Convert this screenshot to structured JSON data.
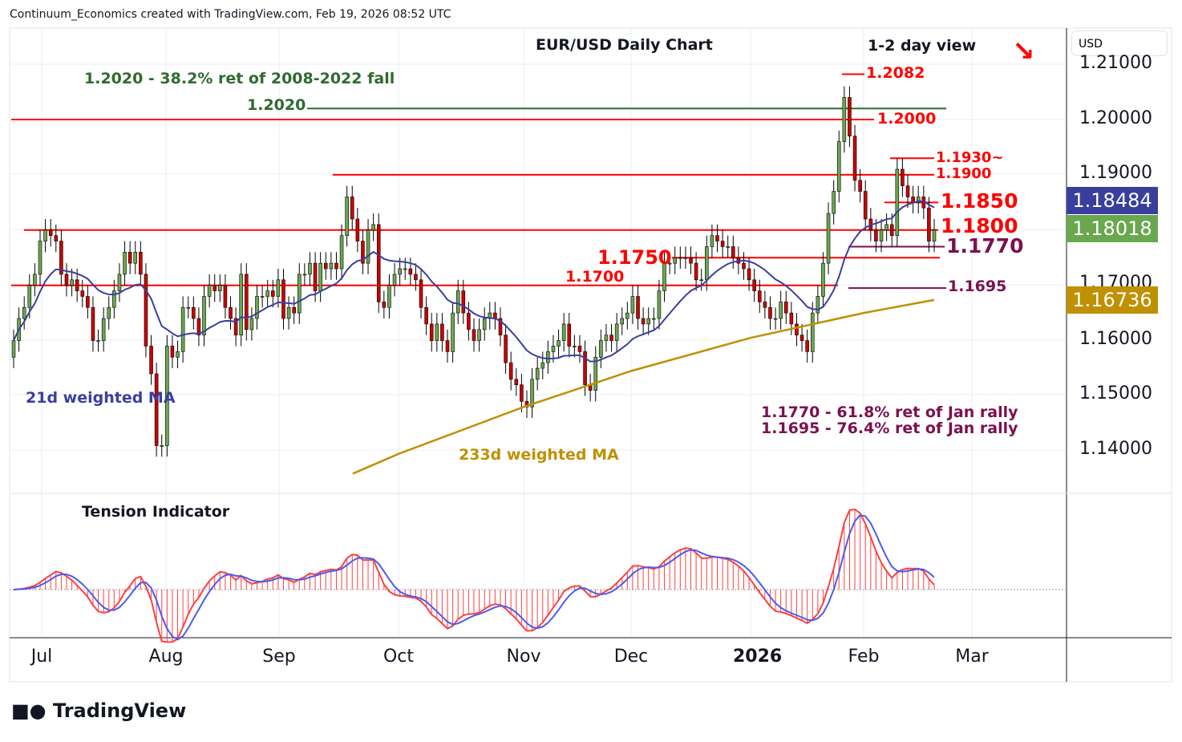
{
  "header": {
    "credit": "Continuum_Economics created with TradingView.com, Feb 19, 2026 08:52 UTC"
  },
  "chart_data": {
    "type": "candlestick",
    "title": "EUR/USD Daily Chart",
    "subtitle": "1-2 day view",
    "direction_arrow": "down-right",
    "currency": "USD",
    "ylim": [
      1.133,
      1.215
    ],
    "y_ticks": [
      "1.21000",
      "1.20000",
      "1.19000",
      "1.17000",
      "1.16000",
      "1.15000",
      "1.14000"
    ],
    "x_ticks": [
      "Jul",
      "Aug",
      "Sep",
      "Oct",
      "Nov",
      "Dec",
      "2026",
      "Feb",
      "Mar"
    ],
    "closes": [
      1.16,
      1.164,
      1.166,
      1.17,
      1.172,
      1.178,
      1.18,
      1.179,
      1.178,
      1.172,
      1.17,
      1.171,
      1.169,
      1.168,
      1.166,
      1.16,
      1.16,
      1.164,
      1.166,
      1.169,
      1.172,
      1.176,
      1.174,
      1.176,
      1.172,
      1.159,
      1.154,
      1.141,
      1.141,
      1.159,
      1.157,
      1.158,
      1.166,
      1.166,
      1.164,
      1.161,
      1.168,
      1.17,
      1.169,
      1.17,
      1.166,
      1.164,
      1.161,
      1.172,
      1.162,
      1.164,
      1.168,
      1.168,
      1.169,
      1.168,
      1.171,
      1.164,
      1.166,
      1.165,
      1.172,
      1.172,
      1.174,
      1.169,
      1.174,
      1.173,
      1.174,
      1.173,
      1.179,
      1.186,
      1.182,
      1.178,
      1.174,
      1.18,
      1.181,
      1.167,
      1.166,
      1.17,
      1.172,
      1.173,
      1.173,
      1.172,
      1.171,
      1.166,
      1.163,
      1.16,
      1.163,
      1.16,
      1.158,
      1.165,
      1.169,
      1.165,
      1.162,
      1.16,
      1.162,
      1.164,
      1.165,
      1.164,
      1.161,
      1.156,
      1.153,
      1.152,
      1.149,
      1.148,
      1.153,
      1.155,
      1.156,
      1.158,
      1.159,
      1.16,
      1.163,
      1.159,
      1.159,
      1.158,
      1.152,
      1.151,
      1.157,
      1.16,
      1.161,
      1.16,
      1.163,
      1.164,
      1.165,
      1.168,
      1.164,
      1.163,
      1.164,
      1.164,
      1.169,
      1.174,
      1.174,
      1.175,
      1.175,
      1.175,
      1.174,
      1.171,
      1.171,
      1.177,
      1.179,
      1.178,
      1.177,
      1.177,
      1.175,
      1.174,
      1.173,
      1.171,
      1.169,
      1.167,
      1.166,
      1.164,
      1.164,
      1.167,
      1.165,
      1.163,
      1.161,
      1.16,
      1.158,
      1.165,
      1.168,
      1.174,
      1.183,
      1.187,
      1.196,
      1.204,
      1.197,
      1.189,
      1.187,
      1.182,
      1.18,
      1.178,
      1.18,
      1.181,
      1.179,
      1.191,
      1.188,
      1.186,
      1.185,
      1.186,
      1.184,
      1.178,
      1.18
    ],
    "ma233_anchors": [
      {
        "at": "Oct",
        "v": 1.1395
      },
      {
        "at": "Nov",
        "v": 1.148
      },
      {
        "at": "Dec",
        "v": 1.1545
      },
      {
        "at": "2026",
        "v": 1.1605
      },
      {
        "at": "Feb",
        "v": 1.165
      }
    ],
    "price_tags": [
      {
        "value": "1.18484",
        "color": "#3a3f9e",
        "series": "21d weighted MA"
      },
      {
        "value": "1.18018",
        "color": "#6aa84f",
        "series": "last"
      },
      {
        "value": "1.16736",
        "color": "#bf9000",
        "series": "233d weighted MA"
      }
    ],
    "levels": [
      {
        "label": "1.2082",
        "value": 1.2082,
        "color": "#ff0000"
      },
      {
        "label": "1.2020",
        "value": 1.202,
        "color": "#2e6b2e"
      },
      {
        "label": "1.2000",
        "value": 1.2,
        "color": "#ff0000"
      },
      {
        "label": "1.1930~",
        "value": 1.193,
        "color": "#ff0000"
      },
      {
        "label": "1.1900",
        "value": 1.19,
        "color": "#ff0000"
      },
      {
        "label": "1.1850",
        "value": 1.185,
        "color": "#ff0000"
      },
      {
        "label": "1.1800",
        "value": 1.18,
        "color": "#ff0000"
      },
      {
        "label": "1.1770",
        "value": 1.177,
        "color": "#7b1050"
      },
      {
        "label": "1.1750",
        "value": 1.175,
        "color": "#ff0000"
      },
      {
        "label": "1.1700",
        "value": 1.17,
        "color": "#ff0000"
      },
      {
        "label": "1.1695",
        "value": 1.1695,
        "color": "#7b1050"
      }
    ],
    "annotations": {
      "fib_2020": "1.2020 - 38.2% ret of 2008-2022 fall",
      "fib_1770": "1.1770 - 61.8% ret of Jan rally",
      "fib_1695": "1.1695 - 76.4% ret of Jan rally",
      "ma21": "21d weighted MA",
      "ma233": "233d weighted MA",
      "indicator": "Tension Indicator"
    },
    "colors": {
      "up": "#6aa84f",
      "down": "#cc0000",
      "ma21": "#3a3f9e",
      "ma233": "#bf9000",
      "hist": "#ff4040",
      "signal": "#4a5cf0"
    }
  },
  "footer": {
    "logo": "TradingView"
  }
}
